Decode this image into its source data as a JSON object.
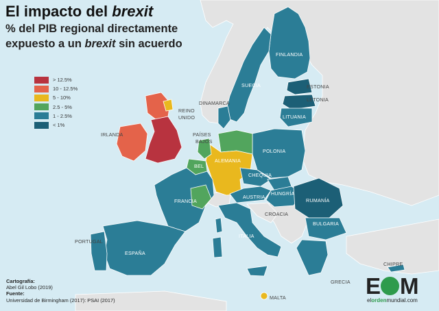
{
  "title": {
    "main": "El impacto del",
    "italic": "brexit"
  },
  "subtitle": {
    "line1": "% del PIB regional directamente",
    "line2_prefix": "expuesto a un",
    "line2_italic": "brexit",
    "line2_suffix": "sin acuerdo"
  },
  "legend": [
    {
      "label": "> 12.5%",
      "color": "#b8333f"
    },
    {
      "label": "10 - 12.5%",
      "color": "#e4634a"
    },
    {
      "label": "5 - 10%",
      "color": "#e9b81e"
    },
    {
      "label": "2.5 - 5%",
      "color": "#52a55d"
    },
    {
      "label": "1 - 2.5%",
      "color": "#2b7d96"
    },
    {
      "label": "< 1%",
      "color": "#1c5f76"
    }
  ],
  "country_labels": {
    "finlandia": "FINLANDIA",
    "suecia": "SUECIA",
    "estonia": "ESTONIA",
    "letonia": "LETONIA",
    "lituania": "LITUANIA",
    "dinamarca": "DINAMARCA",
    "reino_unido_1": "REINO",
    "reino_unido_2": "UNIDO",
    "irlanda": "IRLANDA",
    "paises_bajos_1": "PAÍSES",
    "paises_bajos_2": "BAJOS",
    "bel": "BEL",
    "alemania": "ALEMANIA",
    "polonia": "POLONIA",
    "chequia": "CHEQUIA",
    "francia": "FRANCIA",
    "austria": "AUSTRIA",
    "hungria": "HUNGRÍA",
    "rumania": "RUMANÍA",
    "croacia": "CROACIA",
    "bulgaria": "BULGARIA",
    "italia": "ITALIA",
    "portugal": "PORTUGAL",
    "espana": "ESPAÑA",
    "grecia": "GRECIA",
    "chipre": "CHIPRE",
    "malta": "MALTA"
  },
  "credits": {
    "cartografia_label": "Cartografía:",
    "cartografia_value": "Abel Gil Lobo (2019)",
    "fuente_label": "Fuente:",
    "fuente_value": "Universidad de Birmingham (2017): PSAI (2017)"
  },
  "logo": {
    "e": "E",
    "m": "M",
    "site_prefix": "el",
    "site_mid": "orden",
    "site_suffix": "mundial.com"
  },
  "colors": {
    "sea": "#d6ebf3",
    "non_eu_land": "#e3e3e3",
    "non_eu_border": "#ffffff"
  }
}
